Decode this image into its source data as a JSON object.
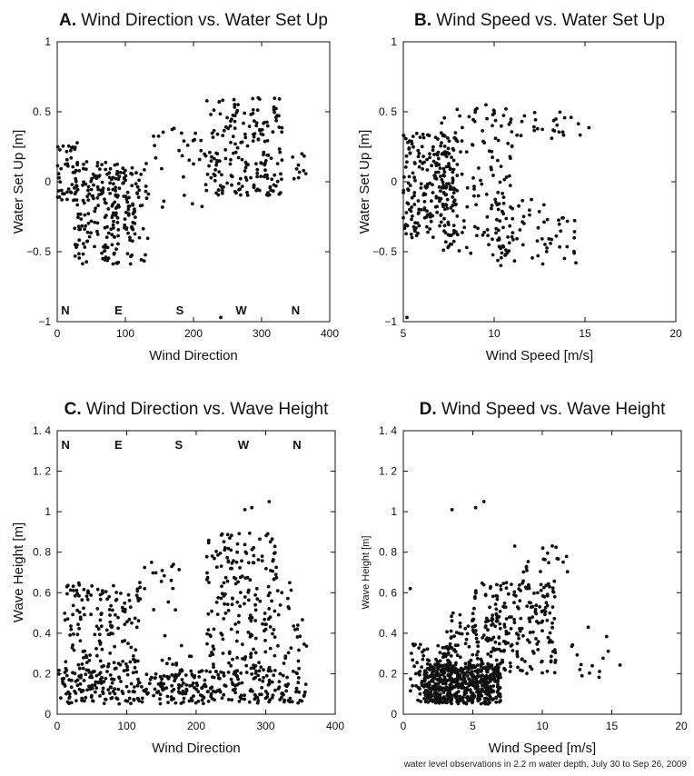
{
  "footnote": "water level observations in 2.2 m water depth, July 30 to Sep 26, 2009",
  "chart_data": [
    {
      "type": "scatter",
      "panel_letter": "A.",
      "title": "Wind Direction vs. Water Set Up",
      "xlabel": "Wind Direction",
      "ylabel": "Water Set Up [m]",
      "xlim": [
        0,
        400
      ],
      "ylim": [
        -1,
        1
      ],
      "xticks": [
        0,
        100,
        200,
        300,
        400
      ],
      "yticks": [
        -1,
        -0.5,
        0,
        0.5,
        1
      ],
      "xtick_labels": [
        "0",
        "100",
        "200",
        "300",
        "400"
      ],
      "ytick_labels": [
        "−1",
        "−0. 5",
        "0",
        "0. 5",
        "1"
      ],
      "compass_labels": [
        {
          "text": "N",
          "x": 12
        },
        {
          "text": "E",
          "x": 90
        },
        {
          "text": "S",
          "x": 180
        },
        {
          "text": "W",
          "x": 270
        },
        {
          "text": "N",
          "x": 350
        }
      ],
      "compass_row": "bottom",
      "point_color": "#111111",
      "clusters": [
        {
          "n": 45,
          "x": [
            0,
            30
          ],
          "y": [
            -0.15,
            0.3
          ]
        },
        {
          "n": 150,
          "x": [
            25,
            90
          ],
          "y": [
            -0.6,
            0.15
          ]
        },
        {
          "n": 60,
          "x": [
            80,
            115
          ],
          "y": [
            -0.45,
            0.1
          ]
        },
        {
          "n": 35,
          "x": [
            95,
            135
          ],
          "y": [
            -0.6,
            0.1
          ]
        },
        {
          "n": 30,
          "x": [
            130,
            215
          ],
          "y": [
            -0.2,
            0.4
          ]
        },
        {
          "n": 190,
          "x": [
            215,
            330
          ],
          "y": [
            -0.1,
            0.6
          ]
        },
        {
          "n": 10,
          "x": [
            345,
            365
          ],
          "y": [
            0.0,
            0.2
          ]
        }
      ],
      "points": [
        [
          240,
          -0.97
        ],
        [
          295,
          0.6
        ]
      ]
    },
    {
      "type": "scatter",
      "panel_letter": "B.",
      "title": "Wind Speed vs. Water Set Up",
      "xlabel": "Wind Speed [m/s]",
      "ylabel": "Water Set Up [m]",
      "xlim": [
        5,
        20
      ],
      "ylim": [
        -1,
        1
      ],
      "xticks": [
        5,
        10,
        15,
        20
      ],
      "yticks": [
        -1,
        -0.5,
        0,
        0.5,
        1
      ],
      "xtick_labels": [
        "5",
        "10",
        "15",
        "20"
      ],
      "ytick_labels": [
        "−1",
        "−0. 5",
        "0",
        "0. 5",
        "1"
      ],
      "point_color": "#111111",
      "clusters": [
        {
          "n": 220,
          "x": [
            5,
            8
          ],
          "y": [
            -0.4,
            0.35
          ]
        },
        {
          "n": 140,
          "x": [
            7,
            11
          ],
          "y": [
            -0.55,
            0.55
          ]
        },
        {
          "n": 60,
          "x": [
            10,
            14.5
          ],
          "y": [
            -0.6,
            -0.1
          ]
        },
        {
          "n": 30,
          "x": [
            10,
            15.5
          ],
          "y": [
            0.3,
            0.5
          ]
        }
      ],
      "points": [
        [
          5.2,
          -0.97
        ],
        [
          14.5,
          -0.58
        ]
      ]
    },
    {
      "type": "scatter",
      "panel_letter": "C.",
      "title": "Wind Direction vs. Wave Height",
      "xlabel": "Wind Direction",
      "ylabel": "Wave Height [m]",
      "xlim": [
        0,
        400
      ],
      "ylim": [
        0,
        1.4
      ],
      "xticks": [
        0,
        100,
        200,
        300,
        400
      ],
      "yticks": [
        0,
        0.2,
        0.4,
        0.6,
        0.8,
        1,
        1.2,
        1.4
      ],
      "xtick_labels": [
        "0",
        "100",
        "200",
        "300",
        "400"
      ],
      "ytick_labels": [
        "0",
        "0. 2",
        "0. 4",
        "0. 6",
        "0. 8",
        "1",
        "1. 2",
        "1. 4"
      ],
      "compass_labels": [
        {
          "text": "N",
          "x": 12
        },
        {
          "text": "E",
          "x": 88
        },
        {
          "text": "S",
          "x": 175
        },
        {
          "text": "W",
          "x": 268
        },
        {
          "text": "N",
          "x": 345
        }
      ],
      "compass_row": "top",
      "point_color": "#111111",
      "clusters": [
        {
          "n": 380,
          "x": [
            0,
            360
          ],
          "y": [
            0.05,
            0.22
          ]
        },
        {
          "n": 160,
          "x": [
            10,
            120
          ],
          "y": [
            0.2,
            0.65
          ]
        },
        {
          "n": 30,
          "x": [
            120,
            200
          ],
          "y": [
            0.15,
            0.8
          ]
        },
        {
          "n": 200,
          "x": [
            215,
            320
          ],
          "y": [
            0.2,
            0.9
          ]
        },
        {
          "n": 25,
          "x": [
            320,
            360
          ],
          "y": [
            0.2,
            0.65
          ]
        }
      ],
      "points": [
        [
          305,
          1.05
        ],
        [
          270,
          1.01
        ],
        [
          280,
          1.02
        ]
      ]
    },
    {
      "type": "scatter",
      "panel_letter": "D.",
      "title": "Wind Speed vs. Wave Height",
      "xlabel": "Wind Speed  [m/s]",
      "ylabel": "Wave Height [m]",
      "xlim": [
        0,
        20
      ],
      "ylim": [
        0,
        1.4
      ],
      "xticks": [
        0,
        5,
        10,
        15,
        20
      ],
      "yticks": [
        0,
        0.2,
        0.4,
        0.6,
        0.8,
        1,
        1.2,
        1.4
      ],
      "xtick_labels": [
        "0",
        "5",
        "10",
        "15",
        "20"
      ],
      "ytick_labels": [
        "0",
        "0. 2",
        "0. 4",
        "0. 6",
        "0. 8",
        "1",
        "1. 2",
        "1. 4"
      ],
      "point_color": "#111111",
      "clusters": [
        {
          "n": 500,
          "x": [
            1.5,
            7
          ],
          "y": [
            0.05,
            0.25
          ]
        },
        {
          "n": 120,
          "x": [
            0.5,
            4
          ],
          "y": [
            0.05,
            0.35
          ]
        },
        {
          "n": 220,
          "x": [
            5,
            11
          ],
          "y": [
            0.2,
            0.65
          ]
        },
        {
          "n": 60,
          "x": [
            3,
            7
          ],
          "y": [
            0.25,
            0.5
          ]
        },
        {
          "n": 25,
          "x": [
            8,
            12
          ],
          "y": [
            0.6,
            0.85
          ]
        },
        {
          "n": 15,
          "x": [
            12,
            16
          ],
          "y": [
            0.15,
            0.45
          ]
        }
      ],
      "points": [
        [
          3.5,
          1.01
        ],
        [
          5.2,
          1.02
        ],
        [
          5.8,
          1.05
        ],
        [
          0.5,
          0.62
        ],
        [
          1.2,
          0.1
        ]
      ]
    }
  ]
}
